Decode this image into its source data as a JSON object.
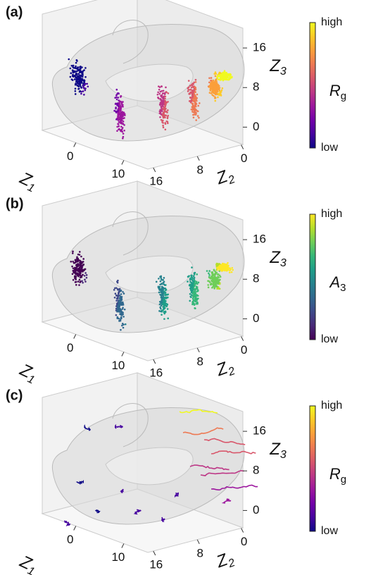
{
  "chart_data": [
    {
      "type": "scatter3d",
      "title": "(a)",
      "xlabel": {
        "text": "Z",
        "sub": "1"
      },
      "ylabel": {
        "text": "Z",
        "sub": "2"
      },
      "zlabel": {
        "text": "Z",
        "sub": "3"
      },
      "xlim": [
        -7,
        15
      ],
      "xticks": [
        10,
        0
      ],
      "ylim": [
        17,
        -0.3
      ],
      "yticks": [
        16,
        8,
        0
      ],
      "zlim": [
        -3.5,
        20
      ],
      "zticks": [
        0,
        8,
        16
      ],
      "colorbar": {
        "label": "R",
        "label_sub": "g",
        "high": "high",
        "low": "low",
        "colors": [
          "#0d0887",
          "#46039f",
          "#7201a8",
          "#9c179e",
          "#bd3786",
          "#d8576b",
          "#ed7953",
          "#fb9f3a",
          "#fdca26",
          "#f0f921"
        ]
      }
    },
    {
      "type": "scatter3d",
      "title": "(b)",
      "xlabel": {
        "text": "Z",
        "sub": "1"
      },
      "ylabel": {
        "text": "Z",
        "sub": "2"
      },
      "zlabel": {
        "text": "Z",
        "sub": "3"
      },
      "xlim": [
        -7,
        15
      ],
      "xticks": [
        10,
        0
      ],
      "ylim": [
        17,
        -0.3
      ],
      "yticks": [
        16,
        8,
        0
      ],
      "zlim": [
        -3.5,
        20
      ],
      "zticks": [
        0,
        8,
        16
      ],
      "colorbar": {
        "label": "A",
        "label_sub": "3",
        "high": "high",
        "low": "low",
        "colors": [
          "#440154",
          "#482878",
          "#3e4989",
          "#31688e",
          "#26828e",
          "#1f9e89",
          "#35b779",
          "#6ece58",
          "#b5de2b",
          "#fde725"
        ]
      }
    },
    {
      "type": "trajectory3d",
      "title": "(c)",
      "xlabel": {
        "text": "Z",
        "sub": "1"
      },
      "ylabel": {
        "text": "Z",
        "sub": "2"
      },
      "zlabel": {
        "text": "Z",
        "sub": "3"
      },
      "xlim": [
        -7,
        15
      ],
      "xticks": [
        10,
        0
      ],
      "ylim": [
        17,
        -0.3
      ],
      "yticks": [
        16,
        8,
        0
      ],
      "zlim": [
        -3.5,
        20
      ],
      "zticks": [
        0,
        8,
        16
      ],
      "colorbar": {
        "label": "R",
        "label_sub": "g",
        "high": "high",
        "low": "low",
        "colors": [
          "#0d0887",
          "#46039f",
          "#7201a8",
          "#9c179e",
          "#bd3786",
          "#d8576b",
          "#ed7953",
          "#fb9f3a",
          "#fdca26",
          "#f0f921"
        ]
      }
    }
  ]
}
